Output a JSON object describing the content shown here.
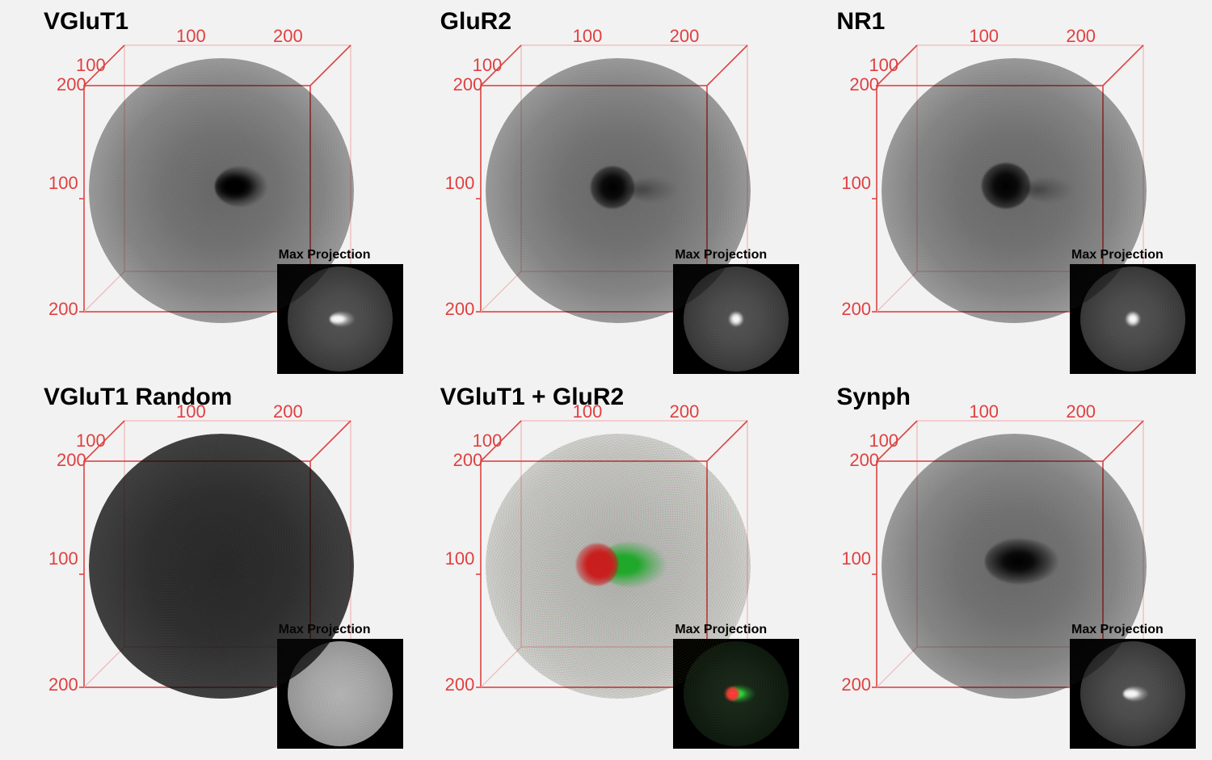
{
  "grid": {
    "cols": 3,
    "rows": 2
  },
  "axis": {
    "color": "#e04040",
    "back_color": "#f2b5b5",
    "ticks": {
      "x": [
        100,
        200
      ],
      "y": [
        100,
        200
      ],
      "z": [
        100,
        200
      ]
    },
    "tick_fontsize": 22
  },
  "title_fontsize": 30,
  "inset_label": "Max Projection",
  "panels": [
    {
      "id": "vglut1",
      "title": "VGluT1",
      "sphere_class": "gray-sphere",
      "blobs": [
        "blob-vglut1"
      ],
      "inset": {
        "style": "gray",
        "spot": "comet"
      }
    },
    {
      "id": "glur2",
      "title": "GluR2",
      "sphere_class": "gray-sphere",
      "blobs": [
        "blob-glur2"
      ],
      "trail": true,
      "inset": {
        "style": "gray",
        "spot": "dot"
      }
    },
    {
      "id": "nr1",
      "title": "NR1",
      "sphere_class": "gray-sphere",
      "blobs": [
        "blob-nr1"
      ],
      "trail": true,
      "inset": {
        "style": "gray",
        "spot": "dot"
      }
    },
    {
      "id": "vglut1-random",
      "title": "VGluT1 Random",
      "sphere_class": "dense-sphere",
      "blobs": [],
      "inset": {
        "style": "bright",
        "spot": "none"
      }
    },
    {
      "id": "vglut1-glur2",
      "title": "VGluT1 + GluR2",
      "sphere_class": "faint-sphere",
      "color_noise": true,
      "blobs": [
        "blob-green",
        "blob-red"
      ],
      "inset": {
        "style": "color",
        "spot": "redgreen"
      }
    },
    {
      "id": "synph",
      "title": "Synph",
      "sphere_class": "gray-sphere",
      "blobs": [
        "blob-synph"
      ],
      "inset": {
        "style": "gray",
        "spot": "comet"
      }
    }
  ],
  "colors": {
    "background": "#f2f2f2",
    "green": "#1fa82a",
    "red": "#c81e1e",
    "inset_bg": "#000000",
    "inset_spot": "#ffffff"
  }
}
